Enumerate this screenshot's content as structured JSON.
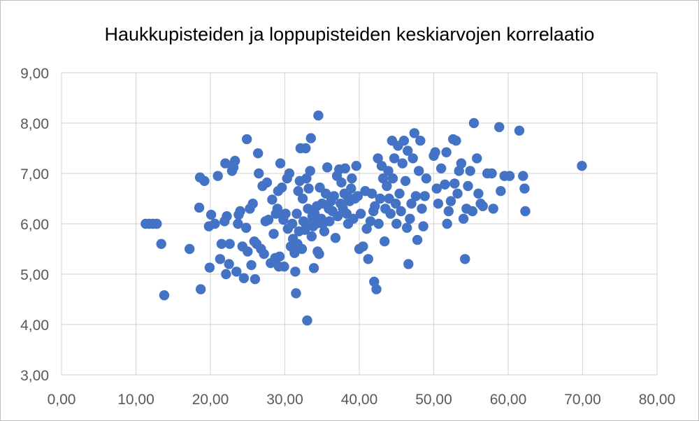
{
  "chart_data": {
    "type": "scatter",
    "title": "Haukkupisteiden ja loppupisteiden keskiarvojen korrelaatio",
    "xlabel": "",
    "ylabel": "",
    "xlim": [
      0,
      80
    ],
    "ylim": [
      3,
      9
    ],
    "x_ticks": [
      "0,00",
      "10,00",
      "20,00",
      "30,00",
      "40,00",
      "50,00",
      "60,00",
      "70,00",
      "80,00"
    ],
    "y_ticks": [
      "3,00",
      "4,00",
      "5,00",
      "6,00",
      "7,00",
      "8,00",
      "9,00"
    ],
    "grid": true,
    "legend": "none",
    "marker_color": "#4472C4",
    "points": [
      [
        11.3,
        6.0
      ],
      [
        11.8,
        6.0
      ],
      [
        12.3,
        6.0
      ],
      [
        12.8,
        6.0
      ],
      [
        13.4,
        5.6
      ],
      [
        13.8,
        4.58
      ],
      [
        17.2,
        5.5
      ],
      [
        18.5,
        6.32
      ],
      [
        18.6,
        6.92
      ],
      [
        18.7,
        4.7
      ],
      [
        19.2,
        6.85
      ],
      [
        19.8,
        5.95
      ],
      [
        19.9,
        5.13
      ],
      [
        20.1,
        6.18
      ],
      [
        20.6,
        6.0
      ],
      [
        21.0,
        6.95
      ],
      [
        21.3,
        5.3
      ],
      [
        21.5,
        5.6
      ],
      [
        21.9,
        6.05
      ],
      [
        22.0,
        7.2
      ],
      [
        22.1,
        5.0
      ],
      [
        22.2,
        6.15
      ],
      [
        22.5,
        5.2
      ],
      [
        22.6,
        5.6
      ],
      [
        22.9,
        7.05
      ],
      [
        23.1,
        7.12
      ],
      [
        23.3,
        7.25
      ],
      [
        23.5,
        5.05
      ],
      [
        23.7,
        6.0
      ],
      [
        23.8,
        6.18
      ],
      [
        24.0,
        6.25
      ],
      [
        24.3,
        5.55
      ],
      [
        24.5,
        4.92
      ],
      [
        24.8,
        5.92
      ],
      [
        24.9,
        7.68
      ],
      [
        25.0,
        5.45
      ],
      [
        25.3,
        6.3
      ],
      [
        25.5,
        5.18
      ],
      [
        25.7,
        6.4
      ],
      [
        25.9,
        5.65
      ],
      [
        26.0,
        4.9
      ],
      [
        26.2,
        5.6
      ],
      [
        26.4,
        7.4
      ],
      [
        26.5,
        7.0
      ],
      [
        26.8,
        5.5
      ],
      [
        27.0,
        6.75
      ],
      [
        27.2,
        5.4
      ],
      [
        27.4,
        6.05
      ],
      [
        27.6,
        6.82
      ],
      [
        27.8,
        6.08
      ],
      [
        28.1,
        5.22
      ],
      [
        28.3,
        6.48
      ],
      [
        28.5,
        5.8
      ],
      [
        28.7,
        5.32
      ],
      [
        28.8,
        6.2
      ],
      [
        29.0,
        6.3
      ],
      [
        29.1,
        6.65
      ],
      [
        29.2,
        5.15
      ],
      [
        29.3,
        5.35
      ],
      [
        29.4,
        7.2
      ],
      [
        29.6,
        6.72
      ],
      [
        29.8,
        6.08
      ],
      [
        29.9,
        5.15
      ],
      [
        30.1,
        6.2
      ],
      [
        30.3,
        6.9
      ],
      [
        30.4,
        5.9
      ],
      [
        30.6,
        7.0
      ],
      [
        30.8,
        5.55
      ],
      [
        31.0,
        6.0
      ],
      [
        31.1,
        5.7
      ],
      [
        31.3,
        5.42
      ],
      [
        31.4,
        5.05
      ],
      [
        31.5,
        4.62
      ],
      [
        31.6,
        6.2
      ],
      [
        31.7,
        5.6
      ],
      [
        31.8,
        6.65
      ],
      [
        31.9,
        5.85
      ],
      [
        32.0,
        6.85
      ],
      [
        32.1,
        7.5
      ],
      [
        32.3,
        5.5
      ],
      [
        32.4,
        6.5
      ],
      [
        32.5,
        6.05
      ],
      [
        32.7,
        5.88
      ],
      [
        32.8,
        7.5
      ],
      [
        32.9,
        6.9
      ],
      [
        33.0,
        4.08
      ],
      [
        33.1,
        6.3
      ],
      [
        33.2,
        6.7
      ],
      [
        33.3,
        6.0
      ],
      [
        33.4,
        7.05
      ],
      [
        33.5,
        7.7
      ],
      [
        33.6,
        5.75
      ],
      [
        33.7,
        6.15
      ],
      [
        33.8,
        5.95
      ],
      [
        33.9,
        5.12
      ],
      [
        34.0,
        6.2
      ],
      [
        34.2,
        6.0
      ],
      [
        34.3,
        6.35
      ],
      [
        34.4,
        5.45
      ],
      [
        34.5,
        8.15
      ],
      [
        34.6,
        5.4
      ],
      [
        34.7,
        6.72
      ],
      [
        34.9,
        6.1
      ],
      [
        35.0,
        6.4
      ],
      [
        35.1,
        6.0
      ],
      [
        35.3,
        5.85
      ],
      [
        35.5,
        6.6
      ],
      [
        35.7,
        7.12
      ],
      [
        35.9,
        6.3
      ],
      [
        36.0,
        6.05
      ],
      [
        36.2,
        6.45
      ],
      [
        36.4,
        6.25
      ],
      [
        36.6,
        6.55
      ],
      [
        36.8,
        5.72
      ],
      [
        37.0,
        6.95
      ],
      [
        37.1,
        6.15
      ],
      [
        37.3,
        7.08
      ],
      [
        37.5,
        6.4
      ],
      [
        37.6,
        6.82
      ],
      [
        37.8,
        6.3
      ],
      [
        38.0,
        6.6
      ],
      [
        38.1,
        7.1
      ],
      [
        38.3,
        6.2
      ],
      [
        38.4,
        6.55
      ],
      [
        38.5,
        6.0
      ],
      [
        38.7,
        6.45
      ],
      [
        38.9,
        6.7
      ],
      [
        39.0,
        6.9
      ],
      [
        39.2,
        6.1
      ],
      [
        39.4,
        6.5
      ],
      [
        39.6,
        7.15
      ],
      [
        39.8,
        6.55
      ],
      [
        40.0,
        5.5
      ],
      [
        40.2,
        6.2
      ],
      [
        40.5,
        5.55
      ],
      [
        40.8,
        6.65
      ],
      [
        41.0,
        5.9
      ],
      [
        41.2,
        5.3
      ],
      [
        41.5,
        6.05
      ],
      [
        41.7,
        6.6
      ],
      [
        41.9,
        6.25
      ],
      [
        42.0,
        4.85
      ],
      [
        42.1,
        6.35
      ],
      [
        42.3,
        4.7
      ],
      [
        42.5,
        7.3
      ],
      [
        42.6,
        6.0
      ],
      [
        42.8,
        6.5
      ],
      [
        43.0,
        7.15
      ],
      [
        43.2,
        6.9
      ],
      [
        43.4,
        5.65
      ],
      [
        43.5,
        6.3
      ],
      [
        43.7,
        6.75
      ],
      [
        43.9,
        7.05
      ],
      [
        44.0,
        6.5
      ],
      [
        44.2,
        6.2
      ],
      [
        44.4,
        7.65
      ],
      [
        44.5,
        6.9
      ],
      [
        44.7,
        7.3
      ],
      [
        44.9,
        6.4
      ],
      [
        45.0,
        6.0
      ],
      [
        45.2,
        7.55
      ],
      [
        45.4,
        6.6
      ],
      [
        45.6,
        6.25
      ],
      [
        45.8,
        7.2
      ],
      [
        46.0,
        7.65
      ],
      [
        46.2,
        6.85
      ],
      [
        46.4,
        5.92
      ],
      [
        46.5,
        7.45
      ],
      [
        46.6,
        5.2
      ],
      [
        46.8,
        6.1
      ],
      [
        47.0,
        6.4
      ],
      [
        47.2,
        7.3
      ],
      [
        47.4,
        7.8
      ],
      [
        47.6,
        6.55
      ],
      [
        47.8,
        5.68
      ],
      [
        48.0,
        7.05
      ],
      [
        48.2,
        7.65
      ],
      [
        48.4,
        6.3
      ],
      [
        48.6,
        5.95
      ],
      [
        48.8,
        6.55
      ],
      [
        49.0,
        6.9
      ],
      [
        50.0,
        7.35
      ],
      [
        50.2,
        7.42
      ],
      [
        50.4,
        6.7
      ],
      [
        50.6,
        6.4
      ],
      [
        51.0,
        7.1
      ],
      [
        51.5,
        6.78
      ],
      [
        51.7,
        7.42
      ],
      [
        51.8,
        6.0
      ],
      [
        52.0,
        6.25
      ],
      [
        52.3,
        6.45
      ],
      [
        52.6,
        7.68
      ],
      [
        52.8,
        6.8
      ],
      [
        53.0,
        7.65
      ],
      [
        53.2,
        6.6
      ],
      [
        53.4,
        7.05
      ],
      [
        53.7,
        7.2
      ],
      [
        54.0,
        6.1
      ],
      [
        54.2,
        5.3
      ],
      [
        54.4,
        6.3
      ],
      [
        54.6,
        6.75
      ],
      [
        54.9,
        7.05
      ],
      [
        55.2,
        6.25
      ],
      [
        55.4,
        8.0
      ],
      [
        55.8,
        7.3
      ],
      [
        56.0,
        6.6
      ],
      [
        56.3,
        6.4
      ],
      [
        56.6,
        6.35
      ],
      [
        57.2,
        7.0
      ],
      [
        57.8,
        7.0
      ],
      [
        58.0,
        6.3
      ],
      [
        58.8,
        7.92
      ],
      [
        59.0,
        6.65
      ],
      [
        59.5,
        6.95
      ],
      [
        60.2,
        6.95
      ],
      [
        61.5,
        7.85
      ],
      [
        62.0,
        6.95
      ],
      [
        62.2,
        6.7
      ],
      [
        62.3,
        6.25
      ],
      [
        69.9,
        7.15
      ]
    ]
  }
}
